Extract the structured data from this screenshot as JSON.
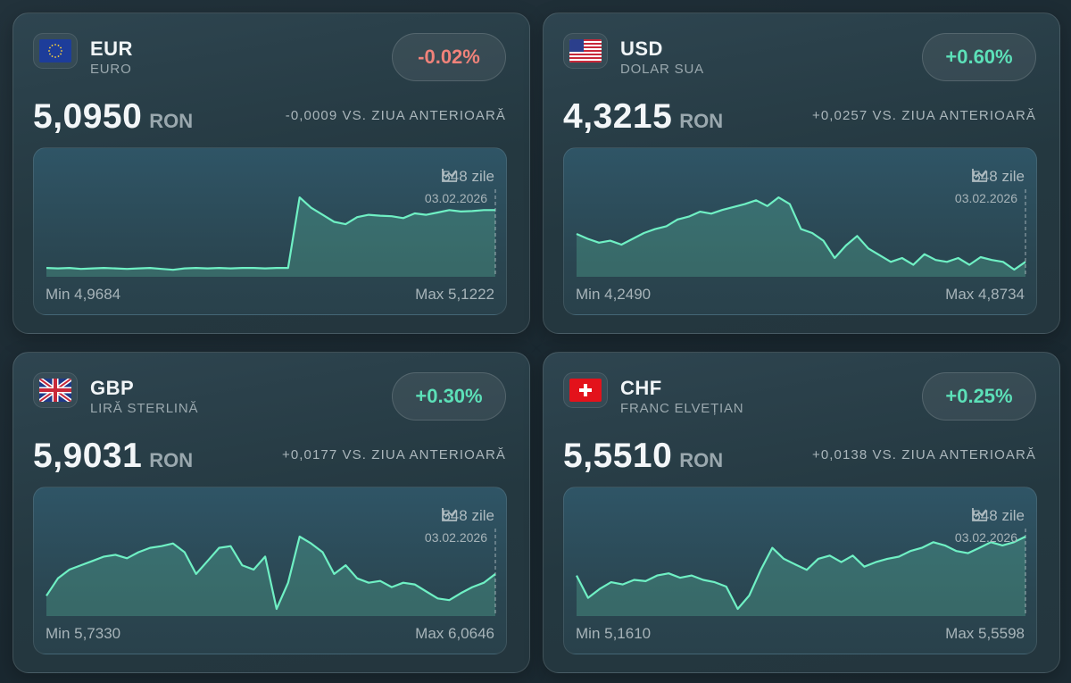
{
  "colors": {
    "positive": "#5ce0b8",
    "negative": "#f0827a",
    "line": "#6ff0c4"
  },
  "cards": [
    {
      "code": "EUR",
      "name": "EURO",
      "flag": "eu-flag",
      "change_pct": "-0.02%",
      "trend": "negative",
      "rate": "5,0950",
      "unit": "RON",
      "delta": "-0,0009 VS. ZIUA ANTERIOARĂ",
      "days": "548 zile",
      "date": "03.02.2026",
      "min": "Min 4,9684",
      "max": "Max 5,1222"
    },
    {
      "code": "USD",
      "name": "DOLAR SUA",
      "flag": "us-flag",
      "change_pct": "+0.60%",
      "trend": "positive",
      "rate": "4,3215",
      "unit": "RON",
      "delta": "+0,0257 VS. ZIUA ANTERIOARĂ",
      "days": "548 zile",
      "date": "03.02.2026",
      "min": "Min 4,2490",
      "max": "Max 4,8734"
    },
    {
      "code": "GBP",
      "name": "LIRĂ STERLINĂ",
      "flag": "uk-flag",
      "change_pct": "+0.30%",
      "trend": "positive",
      "rate": "5,9031",
      "unit": "RON",
      "delta": "+0,0177 VS. ZIUA ANTERIOARĂ",
      "days": "548 zile",
      "date": "03.02.2026",
      "min": "Min 5,7330",
      "max": "Max 6,0646"
    },
    {
      "code": "CHF",
      "name": "FRANC ELVEȚIAN",
      "flag": "ch-flag",
      "change_pct": "+0.25%",
      "trend": "positive",
      "rate": "5,5510",
      "unit": "RON",
      "delta": "+0,0138 VS. ZIUA ANTERIOARĂ",
      "days": "548 zile",
      "date": "03.02.2026",
      "min": "Min 5,1610",
      "max": "Max 5,5598"
    }
  ],
  "chart_data": [
    {
      "type": "area",
      "series_of": "EUR",
      "ylim": [
        4.9684,
        5.1222
      ],
      "values": [
        4.972,
        4.971,
        4.972,
        4.97,
        4.971,
        4.972,
        4.971,
        4.97,
        4.971,
        4.972,
        4.97,
        4.968,
        4.971,
        4.972,
        4.971,
        4.972,
        4.971,
        4.972,
        4.972,
        4.971,
        4.972,
        4.972,
        5.122,
        5.1,
        5.085,
        5.07,
        5.065,
        5.08,
        5.085,
        5.083,
        5.082,
        5.078,
        5.088,
        5.085,
        5.09,
        5.095,
        5.092,
        5.093,
        5.095,
        5.095
      ]
    },
    {
      "type": "area",
      "series_of": "USD",
      "ylim": [
        4.249,
        4.8734
      ],
      "values": [
        4.557,
        4.515,
        4.482,
        4.499,
        4.465,
        4.515,
        4.565,
        4.599,
        4.624,
        4.682,
        4.707,
        4.749,
        4.732,
        4.765,
        4.79,
        4.815,
        4.848,
        4.798,
        4.873,
        4.815,
        4.599,
        4.565,
        4.499,
        4.349,
        4.457,
        4.54,
        4.432,
        4.374,
        4.316,
        4.349,
        4.291,
        4.382,
        4.332,
        4.316,
        4.349,
        4.291,
        4.357,
        4.332,
        4.316,
        4.249,
        4.316
      ]
    },
    {
      "type": "area",
      "series_of": "GBP",
      "ylim": [
        5.733,
        6.0646
      ],
      "values": [
        5.793,
        5.873,
        5.913,
        5.933,
        5.953,
        5.973,
        5.981,
        5.965,
        5.993,
        6.013,
        6.021,
        6.033,
        5.993,
        5.893,
        5.953,
        6.013,
        6.021,
        5.933,
        5.913,
        5.973,
        5.733,
        5.853,
        6.0646,
        6.033,
        5.993,
        5.893,
        5.933,
        5.873,
        5.853,
        5.861,
        5.833,
        5.853,
        5.845,
        5.813,
        5.781,
        5.773,
        5.805,
        5.833,
        5.853,
        5.893
      ]
    },
    {
      "type": "area",
      "series_of": "CHF",
      "ylim": [
        5.161,
        5.5598
      ],
      "values": [
        5.345,
        5.222,
        5.271,
        5.308,
        5.296,
        5.321,
        5.314,
        5.345,
        5.357,
        5.333,
        5.345,
        5.321,
        5.308,
        5.284,
        5.161,
        5.235,
        5.376,
        5.498,
        5.437,
        5.406,
        5.376,
        5.437,
        5.455,
        5.419,
        5.455,
        5.394,
        5.419,
        5.437,
        5.449,
        5.48,
        5.498,
        5.529,
        5.511,
        5.48,
        5.468,
        5.498,
        5.529,
        5.511,
        5.529,
        5.5598
      ]
    }
  ]
}
